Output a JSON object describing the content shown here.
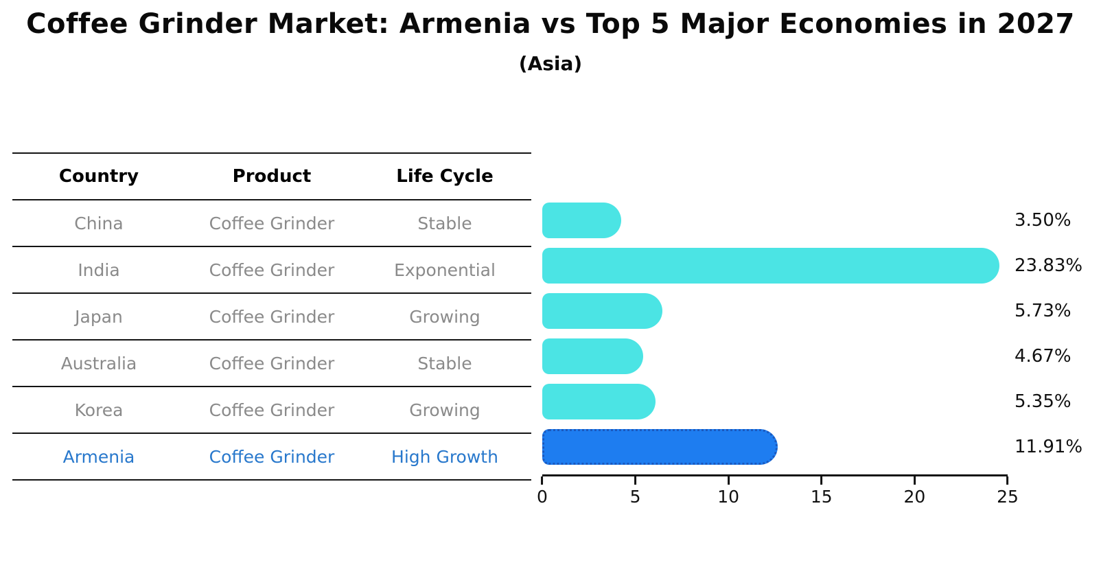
{
  "title": "Coffee Grinder Market: Armenia vs Top 5 Major Economies in 2027",
  "subtitle": "(Asia)",
  "table": {
    "headers": [
      "Country",
      "Product",
      "Life Cycle"
    ],
    "rows": [
      {
        "country": "China",
        "product": "Coffee Grinder",
        "life_cycle": "Stable",
        "highlight": false
      },
      {
        "country": "India",
        "product": "Coffee Grinder",
        "life_cycle": "Exponential",
        "highlight": false
      },
      {
        "country": "Japan",
        "product": "Coffee Grinder",
        "life_cycle": "Growing",
        "highlight": false
      },
      {
        "country": "Australia",
        "product": "Coffee Grinder",
        "life_cycle": "Stable",
        "highlight": false
      },
      {
        "country": "Korea",
        "product": "Coffee Grinder",
        "life_cycle": "Growing",
        "highlight": false
      },
      {
        "country": "Armenia",
        "product": "Coffee Grinder",
        "life_cycle": "High Growth",
        "highlight": true
      }
    ]
  },
  "chart_data": {
    "type": "bar",
    "orientation": "horizontal",
    "title": "Coffee Grinder Market: Armenia vs Top 5 Major Economies in 2027",
    "subtitle": "(Asia)",
    "categories": [
      "China",
      "India",
      "Japan",
      "Australia",
      "Korea",
      "Armenia"
    ],
    "values": [
      3.5,
      23.83,
      5.73,
      4.67,
      5.35,
      11.91
    ],
    "value_labels": [
      "3.50%",
      "23.83%",
      "5.73%",
      "4.67%",
      "5.35%",
      "11.91%"
    ],
    "highlight_index": 5,
    "xlim": [
      0,
      25
    ],
    "x_ticks": [
      0,
      5,
      10,
      15,
      20,
      25
    ],
    "grid": false,
    "legend": false,
    "colors": {
      "bar_default": "#4be4e4",
      "bar_highlight": "#1e7df0",
      "bar_highlight_border": "#1b58bc",
      "highlight_text": "#2878cc",
      "row_text": "#8a8a8a",
      "label_text": "#111111"
    }
  }
}
